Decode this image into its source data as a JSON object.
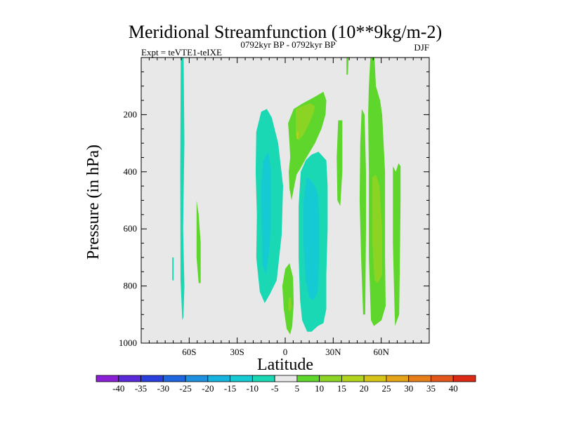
{
  "chart_data": {
    "type": "contour",
    "title": "Meridional Streamfunction (10**9kg/m-2)",
    "left_string": "Expt = teVTE1-teIXE",
    "center_string": "0792kyr BP - 0792kyr BP",
    "right_string": "DJF",
    "xlabel": "Latitude",
    "ylabel": "Pressure (in hPa)",
    "xlim": [
      -90,
      90
    ],
    "ylim": [
      1000,
      0
    ],
    "x_ticks": [
      {
        "value": -60,
        "label": "60S"
      },
      {
        "value": -30,
        "label": "30S"
      },
      {
        "value": 0,
        "label": "0"
      },
      {
        "value": 30,
        "label": "30N"
      },
      {
        "value": 60,
        "label": "60N"
      }
    ],
    "y_ticks": [
      {
        "value": 200,
        "label": "200"
      },
      {
        "value": 400,
        "label": "400"
      },
      {
        "value": 600,
        "label": "600"
      },
      {
        "value": 800,
        "label": "800"
      },
      {
        "value": 1000,
        "label": "1000"
      }
    ],
    "background_color": "#e8e8e8",
    "colorbar": {
      "labels": [
        "-40",
        "-35",
        "-30",
        "-25",
        "-20",
        "-15",
        "-10",
        "-5",
        "5",
        "10",
        "15",
        "20",
        "25",
        "30",
        "35",
        "40"
      ],
      "colors": [
        "#8a1fd6",
        "#5a2ad8",
        "#2a3fdc",
        "#1e66e0",
        "#1f8fe0",
        "#17b4df",
        "#15cad3",
        "#1ad8b4",
        "#e8e8e8",
        "#5fd62c",
        "#8cd423",
        "#b3d41c",
        "#d6c418",
        "#e5a317",
        "#e67e1a",
        "#e3571a",
        "#dc2a14"
      ]
    },
    "regions": [
      {
        "name": "sh-polar-thin-band",
        "level": -5,
        "color": "#1ad8b4",
        "polygon": [
          [
            -65.3,
            0
          ],
          [
            -63.5,
            0
          ],
          [
            -63,
            300
          ],
          [
            -63.8,
            600
          ],
          [
            -63,
            800
          ],
          [
            -63.6,
            910
          ],
          [
            -64.3,
            920
          ],
          [
            -65.4,
            780
          ],
          [
            -65.6,
            400
          ]
        ]
      },
      {
        "name": "sh-high-lat-sliver",
        "level": -5,
        "color": "#1ad8b4",
        "polygon": [
          [
            -70.6,
            700
          ],
          [
            -69.7,
            700
          ],
          [
            -69.7,
            780
          ],
          [
            -70.6,
            780
          ]
        ]
      },
      {
        "name": "sh-midlat-patch",
        "level": 5,
        "color": "#5fd62c",
        "polygon": [
          [
            -55.4,
            500
          ],
          [
            -54.1,
            550
          ],
          [
            -52.8,
            650
          ],
          [
            -52.8,
            790
          ],
          [
            -54.1,
            790
          ],
          [
            -55.4,
            700
          ]
        ]
      },
      {
        "name": "sh-subtropical-cell-outer",
        "level": -5,
        "color": "#1ad8b4",
        "polygon": [
          [
            -15,
            190
          ],
          [
            -11.5,
            180
          ],
          [
            -8.4,
            210
          ],
          [
            -4.4,
            300
          ],
          [
            -1.3,
            450
          ],
          [
            -2.2,
            620
          ],
          [
            -5.3,
            780
          ],
          [
            -9.7,
            830
          ],
          [
            -12.8,
            860
          ],
          [
            -15.9,
            820
          ],
          [
            -18.1,
            700
          ],
          [
            -17.7,
            550
          ],
          [
            -18.5,
            400
          ],
          [
            -18.1,
            260
          ]
        ]
      },
      {
        "name": "sh-subtropical-cell-inner",
        "level": -10,
        "color": "#15cad3",
        "polygon": [
          [
            -13.7,
            360
          ],
          [
            -10.6,
            330
          ],
          [
            -8.8,
            400
          ],
          [
            -8.8,
            540
          ],
          [
            -9.7,
            660
          ],
          [
            -11.9,
            760
          ],
          [
            -14.1,
            730
          ],
          [
            -14.6,
            600
          ],
          [
            -15,
            450
          ]
        ]
      },
      {
        "name": "tropical-cell-outer",
        "level": -5,
        "color": "#1ad8b4",
        "polygon": [
          [
            20.8,
            330
          ],
          [
            25.7,
            360
          ],
          [
            26.5,
            450
          ],
          [
            26.5,
            600
          ],
          [
            25.7,
            760
          ],
          [
            25.7,
            880
          ],
          [
            23.9,
            930
          ],
          [
            20.4,
            940
          ],
          [
            16.4,
            960
          ],
          [
            13.7,
            960
          ],
          [
            10.6,
            920
          ],
          [
            9.3,
            850
          ],
          [
            8.4,
            700
          ],
          [
            8.4,
            520
          ],
          [
            9.7,
            400
          ],
          [
            12.8,
            360
          ],
          [
            16.4,
            340
          ]
        ]
      },
      {
        "name": "tropical-cell-inner",
        "level": -10,
        "color": "#15cad3",
        "polygon": [
          [
            13.3,
            420
          ],
          [
            15.9,
            430
          ],
          [
            18.6,
            450
          ],
          [
            20.4,
            480
          ],
          [
            21.2,
            550
          ],
          [
            21.2,
            700
          ],
          [
            20.4,
            820
          ],
          [
            17.7,
            850
          ],
          [
            15,
            840
          ],
          [
            12.8,
            780
          ],
          [
            11.5,
            650
          ],
          [
            11.5,
            500
          ]
        ]
      },
      {
        "name": "nh-upper-tropical-green",
        "level": 5,
        "color": "#5fd62c",
        "polygon": [
          [
            1.8,
            230
          ],
          [
            5.3,
            180
          ],
          [
            11.1,
            160
          ],
          [
            17.7,
            140
          ],
          [
            23.9,
            120
          ],
          [
            25.7,
            150
          ],
          [
            25.2,
            200
          ],
          [
            22.6,
            250
          ],
          [
            18.6,
            300
          ],
          [
            13.3,
            350
          ],
          [
            9.3,
            390
          ],
          [
            7.1,
            410
          ],
          [
            5.3,
            460
          ],
          [
            4,
            500
          ],
          [
            2.7,
            460
          ],
          [
            2.2,
            400
          ],
          [
            3.1,
            350
          ],
          [
            2.7,
            300
          ]
        ]
      },
      {
        "name": "nh-upper-tropical-yellow",
        "level": 10,
        "color": "#8cd423",
        "polygon": [
          [
            6.6,
            180
          ],
          [
            10.6,
            170
          ],
          [
            15.5,
            160
          ],
          [
            18.6,
            170
          ],
          [
            17.3,
            200
          ],
          [
            15,
            230
          ],
          [
            11.5,
            270
          ],
          [
            8.4,
            290
          ],
          [
            6.6,
            270
          ]
        ]
      },
      {
        "name": "nh-upper-tropical-core",
        "level": 15,
        "color": "#b3d41c",
        "polygon": [
          [
            7.1,
            260
          ],
          [
            8.4,
            260
          ],
          [
            8,
            285
          ],
          [
            7.1,
            285
          ]
        ]
      },
      {
        "name": "near-equator-lower-green",
        "level": 5,
        "color": "#5fd62c",
        "polygon": [
          [
            0,
            740
          ],
          [
            2.7,
            720
          ],
          [
            4.9,
            770
          ],
          [
            5.3,
            860
          ],
          [
            4.4,
            940
          ],
          [
            3.1,
            970
          ],
          [
            0.9,
            950
          ],
          [
            -0.9,
            880
          ],
          [
            -1.8,
            800
          ]
        ]
      },
      {
        "name": "near-equator-lower-yellow",
        "level": 10,
        "color": "#8cd423",
        "polygon": [
          [
            2.2,
            840
          ],
          [
            3.5,
            840
          ],
          [
            4,
            870
          ],
          [
            3.1,
            890
          ],
          [
            1.8,
            880
          ]
        ]
      },
      {
        "name": "nh-30n-column-a",
        "level": 5,
        "color": "#5fd62c",
        "polygon": [
          [
            33.1,
            220
          ],
          [
            35.7,
            220
          ],
          [
            35.7,
            400
          ],
          [
            34.4,
            520
          ],
          [
            32.6,
            500
          ],
          [
            32.2,
            350
          ]
        ]
      },
      {
        "name": "nh-30n-column-b",
        "level": 5,
        "color": "#5fd62c",
        "polygon": [
          [
            38.3,
            0
          ],
          [
            39.6,
            0
          ],
          [
            39.2,
            60
          ],
          [
            38.3,
            60
          ]
        ]
      },
      {
        "name": "nh-40n-column",
        "level": 5,
        "color": "#5fd62c",
        "polygon": [
          [
            47.8,
            180
          ],
          [
            49.6,
            200
          ],
          [
            50.5,
            400
          ],
          [
            50.5,
            600
          ],
          [
            50,
            900
          ],
          [
            48.7,
            900
          ],
          [
            47.4,
            700
          ],
          [
            46.5,
            500
          ],
          [
            46.9,
            300
          ]
        ]
      },
      {
        "name": "nh-50n-column-outer",
        "level": 5,
        "color": "#5fd62c",
        "polygon": [
          [
            53.2,
            0
          ],
          [
            55.8,
            0
          ],
          [
            56.7,
            100
          ],
          [
            59.3,
            150
          ],
          [
            60.6,
            200
          ],
          [
            62.4,
            400
          ],
          [
            62.4,
            700
          ],
          [
            62.8,
            870
          ],
          [
            60.2,
            920
          ],
          [
            55.4,
            940
          ],
          [
            53.6,
            920
          ],
          [
            52.3,
            700
          ],
          [
            52.3,
            400
          ],
          [
            51.8,
            200
          ],
          [
            52.3,
            100
          ]
        ]
      },
      {
        "name": "nh-50n-column-inner",
        "level": 10,
        "color": "#8cd423",
        "polygon": [
          [
            54.5,
            420
          ],
          [
            56.7,
            410
          ],
          [
            58.9,
            450
          ],
          [
            60.6,
            600
          ],
          [
            60.6,
            760
          ],
          [
            58,
            790
          ],
          [
            55.8,
            780
          ],
          [
            54.5,
            650
          ]
        ]
      },
      {
        "name": "nh-60n-column",
        "level": 5,
        "color": "#5fd62c",
        "polygon": [
          [
            67.3,
            380
          ],
          [
            69.1,
            400
          ],
          [
            70.8,
            370
          ],
          [
            72.1,
            380
          ],
          [
            72.1,
            500
          ],
          [
            71.7,
            700
          ],
          [
            71.2,
            900
          ],
          [
            68.6,
            940
          ],
          [
            68.2,
            850
          ],
          [
            67.3,
            650
          ]
        ]
      }
    ]
  }
}
